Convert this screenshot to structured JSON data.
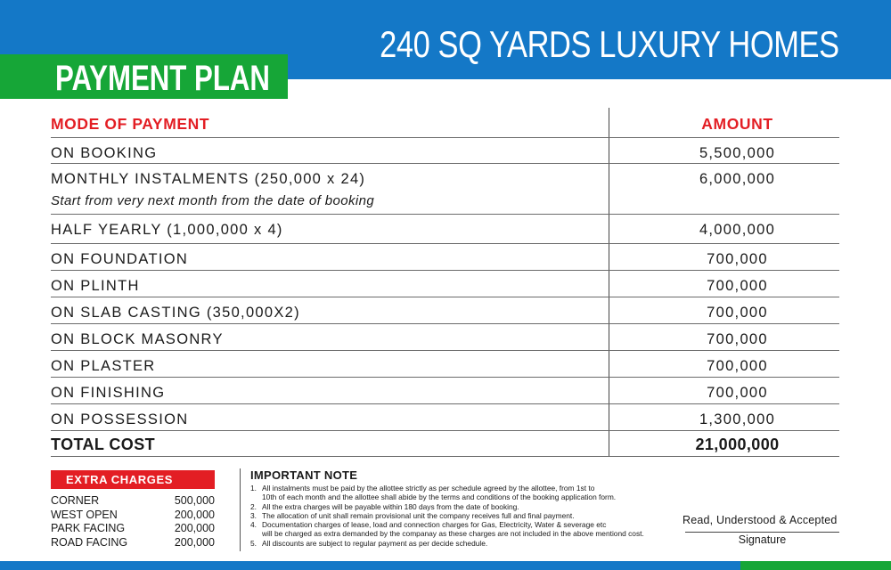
{
  "header": {
    "title": "240 SQ YARDS LUXURY HOMES",
    "plan_label": "PAYMENT PLAN"
  },
  "table": {
    "col_mode": "MODE OF PAYMENT",
    "col_amount": "AMOUNT",
    "rows": [
      {
        "label": "ON BOOKING",
        "amount": "5,500,000"
      },
      {
        "label": "MONTHLY INSTALMENTS (250,000 x 24)",
        "sub": "Start from very next month from the date of booking",
        "amount": "6,000,000"
      },
      {
        "label": "HALF YEARLY (1,000,000 x 4)",
        "amount": "4,000,000"
      },
      {
        "label": "ON FOUNDATION",
        "amount": "700,000"
      },
      {
        "label": "ON PLINTH",
        "amount": "700,000"
      },
      {
        "label": "ON SLAB CASTING (350,000X2)",
        "amount": "700,000"
      },
      {
        "label": "ON BLOCK MASONRY",
        "amount": "700,000"
      },
      {
        "label": "ON PLASTER",
        "amount": "700,000"
      },
      {
        "label": "ON FINISHING",
        "amount": "700,000"
      },
      {
        "label": "ON POSSESSION",
        "amount": "1,300,000"
      }
    ],
    "total_label": "TOTAL COST",
    "total_amount": "21,000,000"
  },
  "extra_charges": {
    "title": "EXTRA CHARGES",
    "items": [
      {
        "label": "CORNER",
        "value": "500,000"
      },
      {
        "label": "WEST OPEN",
        "value": "200,000"
      },
      {
        "label": "PARK FACING",
        "value": "200,000"
      },
      {
        "label": "ROAD FACING",
        "value": "200,000"
      }
    ]
  },
  "notes": {
    "title": "IMPORTANT NOTE",
    "items": [
      {
        "num": "1.",
        "line1": "All instalments must be paid by the allottee strictly as per schedule agreed by the allottee, from 1st to",
        "line2": "10th of each month and the allottee shall abide by the terms and conditions of the booking application form."
      },
      {
        "num": "2.",
        "line1": "All the extra charges will be payable within 180 days from the date of booking."
      },
      {
        "num": "3.",
        "line1": "The allocation of unit shall remain provisional unit the company receives full and final payment."
      },
      {
        "num": "4.",
        "line1": "Documentation charges of lease, load and connection charges for Gas, Electricity, Water & severage etc",
        "line2": "will be charged as extra demanded by the companay as these charges are not included in the above mentiond cost."
      },
      {
        "num": "5.",
        "line1": "All discounts are subject to regular payment as per decide schedule."
      }
    ]
  },
  "acceptance": {
    "text": "Read, Understood & Accepted",
    "signature": "Signature"
  },
  "colors": {
    "blue": "#1478c7",
    "green": "#16a637",
    "red": "#e31e24"
  }
}
